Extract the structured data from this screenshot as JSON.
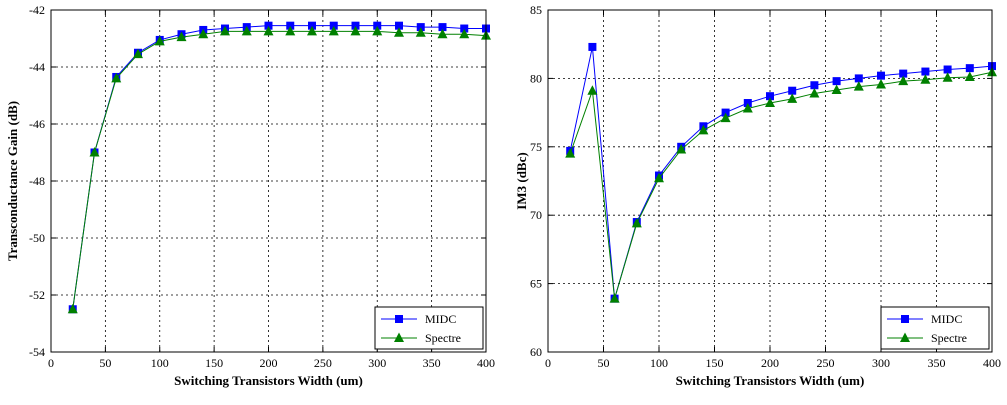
{
  "chart_data": [
    {
      "type": "line",
      "xlabel": "Switching Transistors Width (um)",
      "ylabel": "Transconductance Gain (dB)",
      "xlim": [
        0,
        400
      ],
      "ylim": [
        -54,
        -42
      ],
      "xticks": [
        0,
        50,
        100,
        150,
        200,
        250,
        300,
        350,
        400
      ],
      "yticks": [
        -54,
        -52,
        -50,
        -48,
        -46,
        -44,
        -42
      ],
      "grid": true,
      "legend_position": "bottom-right",
      "x": [
        20,
        40,
        60,
        80,
        100,
        120,
        140,
        160,
        180,
        200,
        220,
        240,
        260,
        280,
        300,
        320,
        340,
        360,
        380,
        400
      ],
      "series": [
        {
          "name": "MIDC",
          "color": "#0000ff",
          "marker": "square",
          "values": [
            -52.5,
            -47.0,
            -44.35,
            -43.5,
            -43.05,
            -42.85,
            -42.7,
            -42.65,
            -42.6,
            -42.55,
            -42.55,
            -42.55,
            -42.55,
            -42.55,
            -42.55,
            -42.55,
            -42.6,
            -42.6,
            -42.65,
            -42.65
          ]
        },
        {
          "name": "Spectre",
          "color": "#008000",
          "marker": "triangle",
          "values": [
            -52.5,
            -47.0,
            -44.4,
            -43.55,
            -43.1,
            -42.95,
            -42.85,
            -42.75,
            -42.75,
            -42.75,
            -42.75,
            -42.75,
            -42.75,
            -42.75,
            -42.75,
            -42.8,
            -42.8,
            -42.85,
            -42.85,
            -42.9
          ]
        }
      ]
    },
    {
      "type": "line",
      "xlabel": "Switching Transistors Width (um)",
      "ylabel": "IM3 (dBc)",
      "xlim": [
        0,
        400
      ],
      "ylim": [
        60,
        85
      ],
      "xticks": [
        0,
        50,
        100,
        150,
        200,
        250,
        300,
        350,
        400
      ],
      "yticks": [
        60,
        65,
        70,
        75,
        80,
        85
      ],
      "grid": true,
      "legend_position": "bottom-right",
      "x": [
        20,
        40,
        60,
        80,
        100,
        120,
        140,
        160,
        180,
        200,
        220,
        240,
        260,
        280,
        300,
        320,
        340,
        360,
        380,
        400
      ],
      "series": [
        {
          "name": "MIDC",
          "color": "#0000ff",
          "marker": "square",
          "values": [
            74.7,
            82.3,
            63.9,
            69.5,
            72.9,
            75.0,
            76.5,
            77.5,
            78.2,
            78.7,
            79.1,
            79.5,
            79.8,
            80.0,
            80.2,
            80.35,
            80.5,
            80.65,
            80.75,
            80.9
          ]
        },
        {
          "name": "Spectre",
          "color": "#008000",
          "marker": "triangle",
          "values": [
            74.5,
            79.1,
            63.9,
            69.4,
            72.7,
            74.8,
            76.2,
            77.1,
            77.8,
            78.2,
            78.5,
            78.9,
            79.15,
            79.4,
            79.55,
            79.8,
            79.9,
            80.05,
            80.1,
            80.45
          ]
        }
      ]
    }
  ]
}
